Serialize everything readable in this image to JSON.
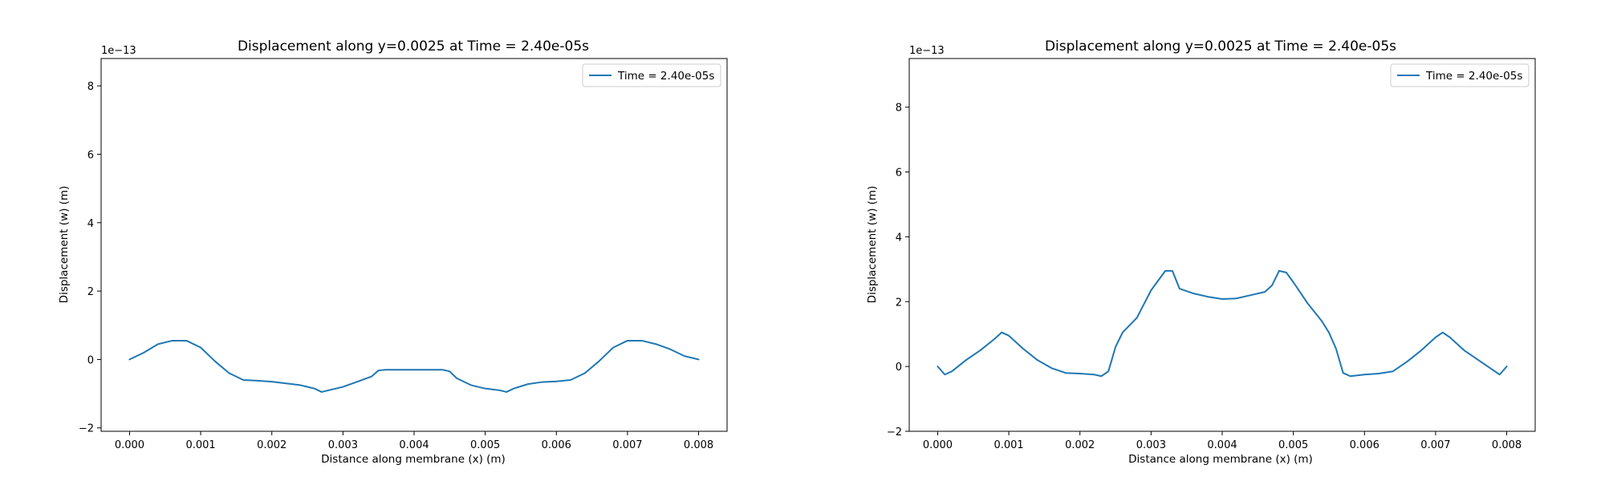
{
  "chart_data": [
    {
      "type": "line",
      "title": "Displacement along y=0.0025 at Time = 2.40e-05s",
      "xlabel": "Distance along membrane (x) (m)",
      "ylabel": "Displacement (w) (m)",
      "y_offset_text": "1e−13",
      "xlim": [
        -0.0004,
        0.0084
      ],
      "ylim": [
        -2.1,
        8.8
      ],
      "x_ticks": [
        0.0,
        0.001,
        0.002,
        0.003,
        0.004,
        0.005,
        0.006,
        0.007,
        0.008
      ],
      "x_tick_labels": [
        "0.000",
        "0.001",
        "0.002",
        "0.003",
        "0.004",
        "0.005",
        "0.006",
        "0.007",
        "0.008"
      ],
      "y_ticks": [
        -2,
        0,
        2,
        4,
        6,
        8
      ],
      "y_tick_labels": [
        "−2",
        "0",
        "2",
        "4",
        "6",
        "8"
      ],
      "legend_position": "top-right",
      "series": [
        {
          "name": "Time = 2.40e-05s",
          "color": "#1f77b4",
          "x": [
            0.0,
            0.0002,
            0.0004,
            0.0006,
            0.0008,
            0.001,
            0.0012,
            0.0014,
            0.0016,
            0.0018,
            0.002,
            0.0022,
            0.0024,
            0.0026,
            0.0027,
            0.0028,
            0.003,
            0.0032,
            0.0034,
            0.0035,
            0.0036,
            0.0038,
            0.004,
            0.0042,
            0.0044,
            0.0045,
            0.0046,
            0.0048,
            0.005,
            0.0052,
            0.0053,
            0.0054,
            0.0056,
            0.0058,
            0.006,
            0.0062,
            0.0064,
            0.0066,
            0.0068,
            0.007,
            0.0072,
            0.0074,
            0.0076,
            0.0078,
            0.008
          ],
          "y": [
            0.0,
            0.2,
            0.45,
            0.55,
            0.55,
            0.35,
            -0.05,
            -0.4,
            -0.6,
            -0.62,
            -0.65,
            -0.7,
            -0.75,
            -0.85,
            -0.95,
            -0.9,
            -0.8,
            -0.65,
            -0.5,
            -0.32,
            -0.3,
            -0.3,
            -0.3,
            -0.3,
            -0.3,
            -0.35,
            -0.55,
            -0.75,
            -0.85,
            -0.9,
            -0.95,
            -0.85,
            -0.72,
            -0.66,
            -0.64,
            -0.6,
            -0.4,
            -0.05,
            0.35,
            0.55,
            0.55,
            0.45,
            0.3,
            0.1,
            0.0
          ]
        }
      ]
    },
    {
      "type": "line",
      "title": "Displacement along y=0.0025 at Time = 2.40e-05s",
      "xlabel": "Distance along membrane (x) (m)",
      "ylabel": "Displacement (w) (m)",
      "y_offset_text": "1e−13",
      "xlim": [
        -0.0004,
        0.0084
      ],
      "ylim": [
        -2.0,
        9.5
      ],
      "x_ticks": [
        0.0,
        0.001,
        0.002,
        0.003,
        0.004,
        0.005,
        0.006,
        0.007,
        0.008
      ],
      "x_tick_labels": [
        "0.000",
        "0.001",
        "0.002",
        "0.003",
        "0.004",
        "0.005",
        "0.006",
        "0.007",
        "0.008"
      ],
      "y_ticks": [
        -2,
        0,
        2,
        4,
        6,
        8
      ],
      "y_tick_labels": [
        "−2",
        "0",
        "2",
        "4",
        "6",
        "8"
      ],
      "legend_position": "top-right",
      "series": [
        {
          "name": "Time = 2.40e-05s",
          "color": "#1f77b4",
          "x": [
            0.0,
            0.0001,
            0.0002,
            0.0004,
            0.0006,
            0.0008,
            0.0009,
            0.001,
            0.0012,
            0.0014,
            0.0016,
            0.0018,
            0.002,
            0.0022,
            0.0023,
            0.0024,
            0.0025,
            0.0026,
            0.0028,
            0.003,
            0.0031,
            0.0032,
            0.0033,
            0.0034,
            0.0036,
            0.0038,
            0.004,
            0.0042,
            0.0044,
            0.0046,
            0.0047,
            0.0048,
            0.0049,
            0.005,
            0.0052,
            0.0054,
            0.0055,
            0.0056,
            0.0057,
            0.0058,
            0.006,
            0.0062,
            0.0064,
            0.0066,
            0.0068,
            0.007,
            0.0071,
            0.0072,
            0.0074,
            0.0076,
            0.0078,
            0.0079,
            0.008
          ],
          "y": [
            0.0,
            -0.25,
            -0.15,
            0.2,
            0.5,
            0.85,
            1.05,
            0.95,
            0.55,
            0.2,
            -0.05,
            -0.2,
            -0.22,
            -0.25,
            -0.3,
            -0.15,
            0.6,
            1.05,
            1.5,
            2.35,
            2.65,
            2.95,
            2.95,
            2.4,
            2.25,
            2.15,
            2.08,
            2.1,
            2.2,
            2.3,
            2.5,
            2.95,
            2.9,
            2.6,
            1.95,
            1.4,
            1.05,
            0.55,
            -0.2,
            -0.3,
            -0.25,
            -0.22,
            -0.15,
            0.15,
            0.5,
            0.9,
            1.05,
            0.9,
            0.5,
            0.2,
            -0.1,
            -0.25,
            0.0
          ]
        }
      ]
    }
  ]
}
